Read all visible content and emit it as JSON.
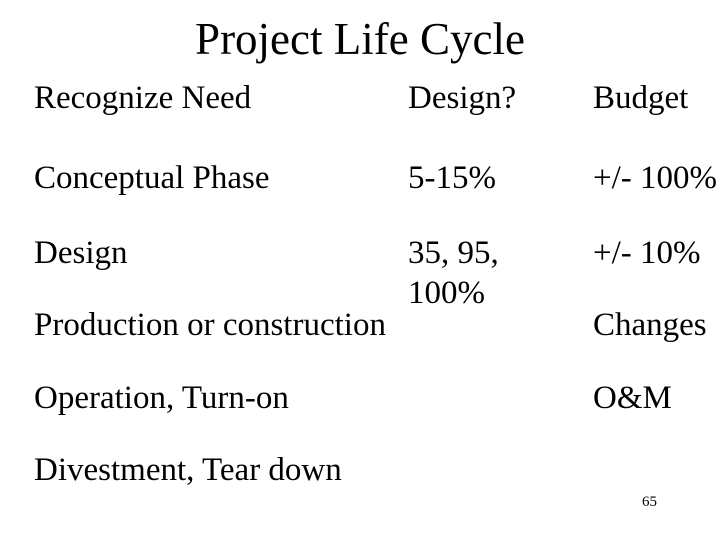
{
  "slide": {
    "title": "Project Life Cycle",
    "page_number": "65",
    "rows": [
      {
        "phase": "Recognize Need",
        "design": "Design?",
        "budget": "Budget"
      },
      {
        "phase": "Conceptual Phase",
        "design": "5-15%",
        "budget": "+/- 100%"
      },
      {
        "phase": "Design",
        "design": "35, 95, 100%",
        "budget": "+/- 10%"
      },
      {
        "phase": "Production or construction",
        "design": "",
        "budget": "Changes"
      },
      {
        "phase": "Operation, Turn-on",
        "design": "",
        "budget": "O&M"
      },
      {
        "phase": "Divestment, Tear down",
        "design": "",
        "budget": ""
      }
    ]
  }
}
